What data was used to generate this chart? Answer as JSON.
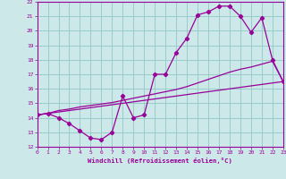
{
  "xlabel": "Windchill (Refroidissement éolien,°C)",
  "xlim": [
    0,
    23
  ],
  "ylim": [
    12,
    22
  ],
  "background_color": "#cce8e8",
  "line_color": "#990099",
  "grid_color": "#99cccc",
  "curve1_x": [
    0,
    1,
    2,
    3,
    4,
    5,
    6,
    7,
    8,
    9,
    10,
    11,
    12,
    13,
    14,
    15,
    16,
    17,
    18,
    19,
    20,
    21,
    22,
    23
  ],
  "curve1_y": [
    14.2,
    14.3,
    14.0,
    13.6,
    13.1,
    12.6,
    12.5,
    13.0,
    15.5,
    14.0,
    14.2,
    17.0,
    17.0,
    18.5,
    19.5,
    21.1,
    21.3,
    21.7,
    21.7,
    21.0,
    19.9,
    20.9,
    18.0,
    16.5
  ],
  "curve2_x": [
    0,
    1,
    2,
    3,
    4,
    5,
    6,
    7,
    8,
    9,
    10,
    11,
    12,
    13,
    14,
    15,
    16,
    17,
    18,
    19,
    20,
    21,
    22,
    23
  ],
  "curve2_y": [
    14.2,
    14.3,
    14.5,
    14.6,
    14.75,
    14.85,
    14.95,
    15.05,
    15.2,
    15.35,
    15.5,
    15.65,
    15.8,
    15.95,
    16.15,
    16.4,
    16.65,
    16.9,
    17.15,
    17.35,
    17.5,
    17.7,
    17.9,
    16.5
  ],
  "curve3_x": [
    0,
    23
  ],
  "curve3_y": [
    14.2,
    16.5
  ],
  "xticks": [
    0,
    1,
    2,
    3,
    4,
    5,
    6,
    7,
    8,
    9,
    10,
    11,
    12,
    13,
    14,
    15,
    16,
    17,
    18,
    19,
    20,
    21,
    22,
    23
  ],
  "yticks": [
    12,
    13,
    14,
    15,
    16,
    17,
    18,
    19,
    20,
    21,
    22
  ]
}
